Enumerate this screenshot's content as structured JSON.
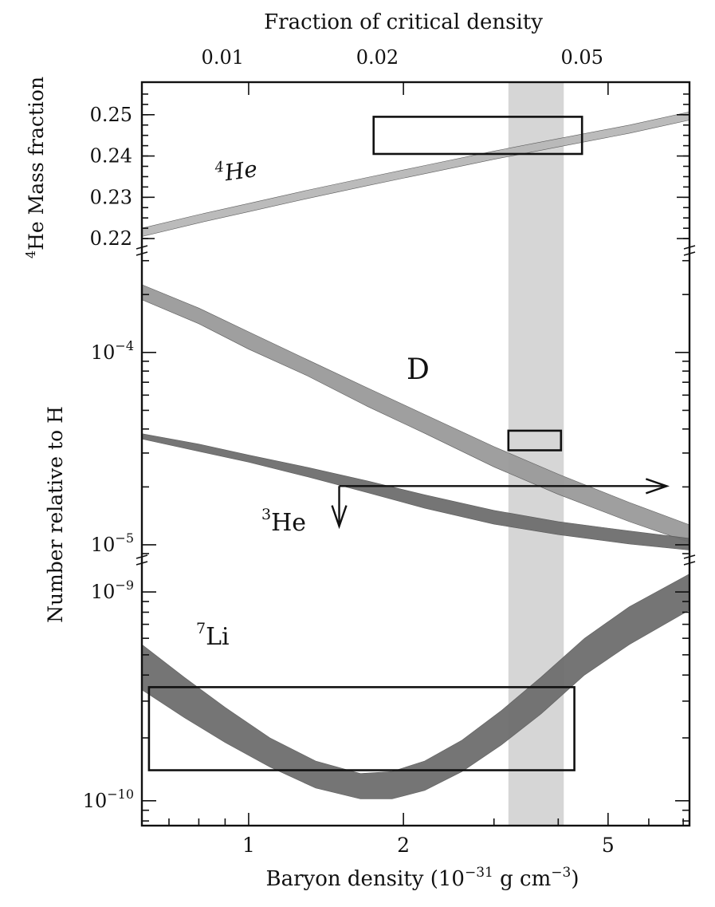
{
  "chart_data": {
    "type": "area",
    "title": "",
    "top_axis": {
      "label": "Fraction of critical density",
      "ticks": [
        {
          "label": "0.01",
          "density": 0.89
        },
        {
          "label": "0.02",
          "density": 1.78
        },
        {
          "label": "0.05",
          "density": 4.45
        }
      ]
    },
    "xlabel": "Baryon density (10",
    "xlabel_exp": "−31",
    "xlabel_unit": " g cm",
    "xlabel_unit_exp": "−3",
    "xlabel_close": ")",
    "xscale": "log",
    "xlim": [
      0.62,
      7.2
    ],
    "x_ticks": [
      {
        "value": 1,
        "label": "1"
      },
      {
        "value": 2,
        "label": "2"
      },
      {
        "value": 5,
        "label": "5"
      }
    ],
    "ylabel_upper_pre": "4",
    "ylabel_upper": "He Mass fraction",
    "ylabel_lower": "Number relative to H",
    "panels": {
      "he4": {
        "yscale": "linear",
        "ylim": [
          0.2175,
          0.2575
        ],
        "ticks": [
          {
            "value": 0.25,
            "label": "0.25"
          },
          {
            "value": 0.24,
            "label": "0.24"
          },
          {
            "value": 0.23,
            "label": "0.23"
          },
          {
            "value": 0.22,
            "label": "0.22"
          }
        ]
      },
      "dhe3": {
        "yscale": "log",
        "ylim": [
          8.5e-06,
          0.00032
        ],
        "ticks": [
          {
            "value": 0.0001,
            "base": "10",
            "exp": "−4"
          },
          {
            "value": 1e-05,
            "base": "10",
            "exp": "−5"
          }
        ]
      },
      "li7": {
        "yscale": "log",
        "ylim": [
          7.8e-11,
          1.35e-09
        ],
        "ticks": [
          {
            "value": 1e-09,
            "base": "10",
            "exp": "−9"
          },
          {
            "value": 1e-10,
            "base": "10",
            "exp": "−10"
          }
        ]
      }
    },
    "series": [
      {
        "name": "He",
        "name_pre": "4",
        "panel": "he4",
        "color": "#b8b8b8",
        "x": [
          0.62,
          0.8,
          1.0,
          1.3,
          1.7,
          2.2,
          3.0,
          4.0,
          5.5,
          7.2
        ],
        "lower": [
          0.2205,
          0.2238,
          0.2265,
          0.2297,
          0.2328,
          0.2357,
          0.2392,
          0.2422,
          0.2455,
          0.2487
        ],
        "upper": [
          0.2225,
          0.2258,
          0.2285,
          0.2317,
          0.2348,
          0.2377,
          0.2412,
          0.2442,
          0.2475,
          0.2507
        ]
      },
      {
        "name": "D",
        "panel": "dhe3",
        "color": "#9a9a9a",
        "x": [
          0.62,
          0.8,
          1.0,
          1.3,
          1.7,
          2.2,
          3.0,
          4.0,
          5.5,
          7.2
        ],
        "lower": [
          0.000188,
          0.000141,
          0.000104,
          7.57e-05,
          5.25e-05,
          3.8e-05,
          2.54e-05,
          1.83e-05,
          1.32e-05,
          1.03e-05
        ],
        "upper": [
          0.000225,
          0.00017,
          0.000128,
          9.18e-05,
          6.55e-05,
          4.76e-05,
          3.24e-05,
          2.33e-05,
          1.66e-05,
          1.27e-05
        ]
      },
      {
        "name": "He",
        "name_pre": "3",
        "panel": "dhe3",
        "color": "#6e6e6e",
        "x": [
          0.62,
          0.8,
          1.0,
          1.3,
          1.7,
          2.2,
          3.0,
          4.0,
          5.5,
          7.2
        ],
        "lower": [
          3.55e-05,
          3.06e-05,
          2.69e-05,
          2.26e-05,
          1.87e-05,
          1.55e-05,
          1.28e-05,
          1.13e-05,
          1.01e-05,
          9.4e-06
        ],
        "upper": [
          3.78e-05,
          3.34e-05,
          2.93e-05,
          2.53e-05,
          2.15e-05,
          1.82e-05,
          1.51e-05,
          1.32e-05,
          1.18e-05,
          1.08e-05
        ]
      },
      {
        "name": "Li",
        "name_pre": "7",
        "panel": "li7",
        "color": "#6e6e6e",
        "x": [
          0.62,
          0.75,
          0.9,
          1.1,
          1.35,
          1.65,
          1.9,
          2.2,
          2.6,
          3.1,
          3.7,
          4.5,
          5.5,
          7.2
        ],
        "lower": [
          3.4e-10,
          2.5e-10,
          1.9e-10,
          1.45e-10,
          1.15e-10,
          1.02e-10,
          1.02e-10,
          1.12e-10,
          1.38e-10,
          1.85e-10,
          2.6e-10,
          4e-10,
          5.6e-10,
          8.2e-10
        ],
        "upper": [
          5.6e-10,
          3.9e-10,
          2.8e-10,
          2e-10,
          1.55e-10,
          1.35e-10,
          1.38e-10,
          1.55e-10,
          1.95e-10,
          2.7e-10,
          3.9e-10,
          6e-10,
          8.5e-10,
          1.22e-09
        ]
      }
    ],
    "observed_boxes": [
      {
        "panel": "he4",
        "x": [
          1.75,
          4.45
        ],
        "y": [
          0.2405,
          0.2495
        ]
      },
      {
        "panel": "dhe3",
        "x": [
          3.2,
          4.05
        ],
        "y": [
          3.1e-05,
          3.92e-05
        ]
      },
      {
        "panel": "li7",
        "x": [
          0.64,
          4.3
        ],
        "y": [
          1.4e-10,
          3.5e-10
        ]
      }
    ],
    "shaded_band": {
      "x": [
        3.2,
        4.1
      ],
      "color": "#cfcfcf"
    },
    "he3_limit": {
      "x_start": 1.5,
      "x_end": 6.5,
      "y": 2.02e-05,
      "y_down": 1.25e-05
    }
  }
}
